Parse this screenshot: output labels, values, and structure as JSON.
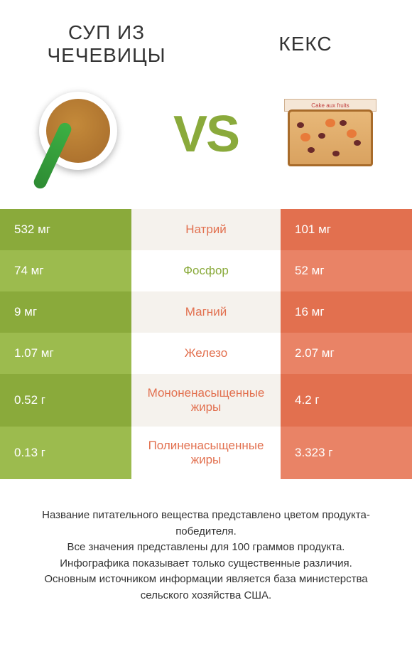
{
  "header": {
    "left_title": "СУП ИЗ ЧЕЧЕВИЦЫ",
    "right_title": "КЕКС",
    "vs": "VS"
  },
  "colors": {
    "left": "#8aaa3b",
    "left_alt": "#9cbb4e",
    "right": "#e2704f",
    "right_alt": "#e98366",
    "mid": "#f5f2ed",
    "mid_alt": "#ffffff",
    "text": "#333333",
    "white": "#ffffff"
  },
  "rows": [
    {
      "left": "532 мг",
      "label": "Натрий",
      "right": "101 мг",
      "winner": "right",
      "tall": false
    },
    {
      "left": "74 мг",
      "label": "Фосфор",
      "right": "52 мг",
      "winner": "left",
      "tall": false
    },
    {
      "left": "9 мг",
      "label": "Магний",
      "right": "16 мг",
      "winner": "right",
      "tall": false
    },
    {
      "left": "1.07 мг",
      "label": "Железо",
      "right": "2.07 мг",
      "winner": "right",
      "tall": false
    },
    {
      "left": "0.52 г",
      "label": "Мононенасыщенные жиры",
      "right": "4.2 г",
      "winner": "right",
      "tall": true
    },
    {
      "left": "0.13 г",
      "label": "Полиненасыщенные жиры",
      "right": "3.323 г",
      "winner": "right",
      "tall": true
    }
  ],
  "footer": {
    "line1": "Название питательного вещества представлено цветом продукта-победителя.",
    "line2": "Все значения представлены для 100 граммов продукта.",
    "line3": "Инфографика показывает только существенные различия.",
    "line4": "Основным источником информации является база министерства сельского хозяйства США."
  },
  "cake_label": "Cake aux fruits"
}
